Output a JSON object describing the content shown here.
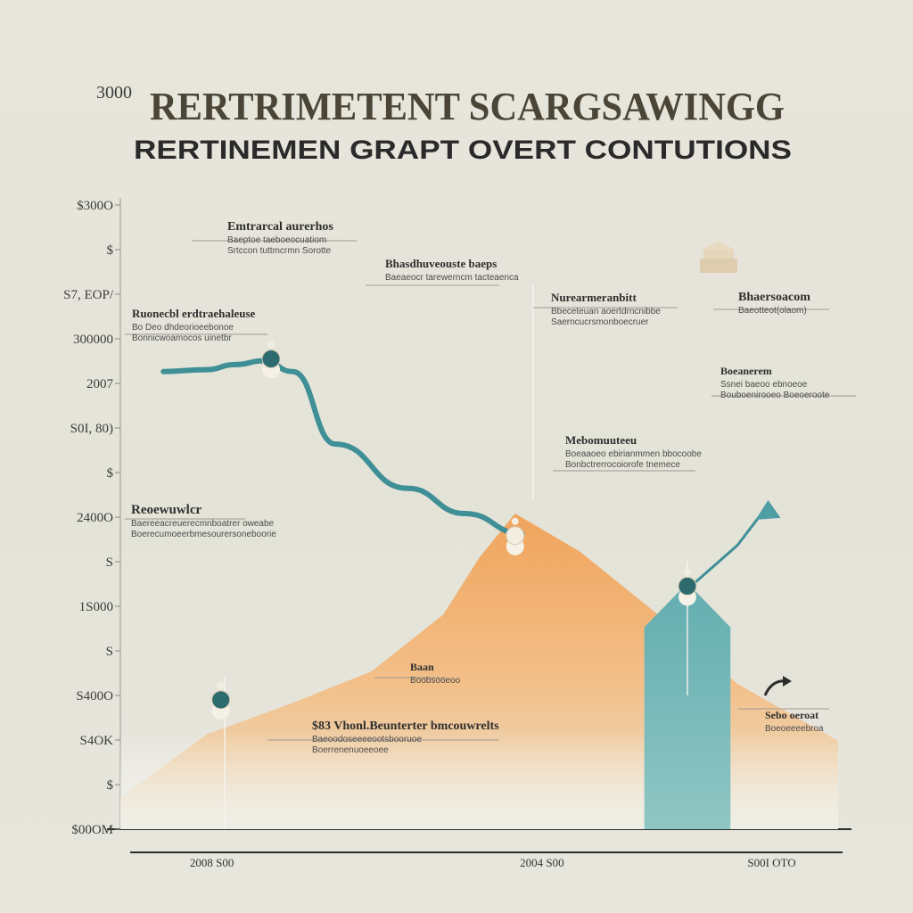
{
  "chart_data": {
    "type": "area",
    "title_prefix": "3000",
    "title": "RERTRIMETENT SCARGSAWINGG",
    "subtitle": "RERTINEMEN GRAPT OVERT CONTUTIONS",
    "y_ticks": [
      "$300O",
      "$",
      "S7, ЕΟΡ/",
      "300000",
      "2007",
      "S0I, 80)",
      "$",
      "2400O",
      "S",
      "1S000",
      "S",
      "S400O",
      "S4OK",
      "$",
      "$00OM"
    ],
    "x_ticks": [
      "2008 S00",
      "2004 S00",
      "S00I OTO"
    ],
    "y_range": [
      0,
      100
    ],
    "x_range": [
      0,
      100
    ],
    "series": [
      {
        "color": "#3f8f96",
        "x": [
          6,
          12,
          16,
          20,
          24,
          30,
          40,
          48,
          56
        ],
        "y": [
          72.5,
          72.8,
          73.6,
          74.2,
          72.5,
          61,
          54,
          50,
          46.8
        ]
      },
      {
        "color": "#f0a35c",
        "x": [
          0,
          12,
          24,
          35,
          45,
          50,
          55,
          64,
          76,
          86,
          100
        ],
        "y": [
          5,
          15,
          20,
          25,
          34,
          43,
          50,
          44,
          33,
          23,
          14
        ]
      },
      {
        "color": "#6fb7b9",
        "x": [
          73,
          79,
          85
        ],
        "y": [
          32,
          39,
          32
        ]
      },
      {
        "color": "#3f8f96",
        "x": [
          80,
          86,
          90
        ],
        "y": [
          39,
          45,
          51
        ]
      }
    ],
    "markers": [
      {
        "x": 21,
        "y": 74.5,
        "color": "#2e6b6e"
      },
      {
        "x": 55,
        "y": 46.5,
        "color": "#f3ede0"
      },
      {
        "x": 79,
        "y": 38.5,
        "color": "#2e6b6e"
      },
      {
        "x": 14,
        "y": 20.5,
        "color": "#2e6b6e"
      }
    ],
    "annotations": [
      {
        "title": "Emtrarcal aurerhos",
        "lines": [
          "Baeptoe taeboeocuatiom",
          "Srtccon tuttmcrmn Sorotte"
        ]
      },
      {
        "title": "Bhasdhuveouste baeps",
        "lines": [
          "Baeaeocr tarewerncm tacteaenca"
        ]
      },
      {
        "title": "Nurearmeranbitt",
        "lines": [
          "Bbeceteuan aoertdrncnibbe",
          "Saerncucrsmonboecruer"
        ]
      },
      {
        "title": "Bhaersoacom",
        "lines": [
          "Baeotteot(olaom)"
        ]
      },
      {
        "title": "Ruonecbl erdtraehaleuse",
        "lines": [
          "Bo Deo dhdeorioeebonoe",
          "Bonnicwoamocos uinetbr"
        ]
      },
      {
        "title": "Boeanerem",
        "lines": [
          "Ssnei baeoo ebnoeoe",
          "Bouboenirooeo Boeoeroote"
        ]
      },
      {
        "title": "Mebomuuteeu",
        "lines": [
          "Boeaaoeo ebirianmmen bbocoobe",
          "Bonbctrerrocoiorofe tnemece"
        ]
      },
      {
        "title": "Reoewuwlcr",
        "lines": [
          "Baereeacreuerecmnboatrer oweabe",
          "Boerecumoeerbmesourersoneboorie"
        ]
      },
      {
        "title": "$83 Vhonl.Beunterter bmcouwrelts",
        "lines": [
          "Baeoodoseeeeootsbooruoe",
          "Boerrenenuoeeoee"
        ]
      },
      {
        "title": "Baan",
        "lines": [
          "Boobsooeoo"
        ]
      },
      {
        "title": "Sebo oeroat",
        "lines": [
          "Boeoeeeebroa"
        ]
      }
    ]
  }
}
